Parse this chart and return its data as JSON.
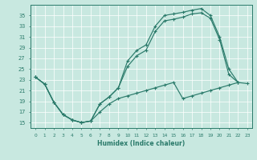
{
  "xlabel": "Humidex (Indice chaleur)",
  "bg_color": "#c8e8e0",
  "line_color": "#2a7a6a",
  "xlim": [
    -0.5,
    23.5
  ],
  "ylim": [
    14.0,
    37.0
  ],
  "xticks": [
    0,
    1,
    2,
    3,
    4,
    5,
    6,
    7,
    8,
    9,
    10,
    11,
    12,
    13,
    14,
    15,
    16,
    17,
    18,
    19,
    20,
    21,
    22,
    23
  ],
  "yticks": [
    15,
    17,
    19,
    21,
    23,
    25,
    27,
    29,
    31,
    33,
    35
  ],
  "upper_x": [
    0,
    1,
    2,
    3,
    4,
    5,
    6,
    7,
    8,
    9,
    10,
    11,
    12,
    13,
    14,
    15,
    16,
    17,
    18,
    19,
    20,
    21,
    22
  ],
  "upper_y": [
    23.5,
    22.2,
    18.8,
    16.5,
    15.5,
    15.0,
    15.3,
    18.5,
    19.8,
    21.5,
    26.5,
    28.5,
    29.5,
    33.0,
    35.0,
    35.3,
    35.6,
    36.0,
    36.3,
    35.0,
    31.0,
    25.0,
    22.5
  ],
  "mid_x": [
    0,
    1,
    2,
    3,
    4,
    5,
    6,
    7,
    8,
    9,
    10,
    11,
    12,
    13,
    14,
    15,
    16,
    17,
    18,
    19,
    20,
    21,
    22
  ],
  "mid_y": [
    23.5,
    22.2,
    18.8,
    16.5,
    15.5,
    15.0,
    15.3,
    18.5,
    19.8,
    21.5,
    25.5,
    27.5,
    28.5,
    32.0,
    34.0,
    34.3,
    34.7,
    35.3,
    35.5,
    34.5,
    30.5,
    24.0,
    22.5
  ],
  "low_x": [
    0,
    1,
    2,
    3,
    4,
    5,
    6,
    7,
    8,
    9,
    10,
    11,
    12,
    13,
    14,
    15,
    16,
    17,
    18,
    19,
    20,
    21,
    22,
    23
  ],
  "low_y": [
    23.5,
    22.2,
    18.8,
    16.5,
    15.5,
    15.0,
    15.3,
    17.0,
    18.5,
    19.5,
    20.0,
    20.5,
    21.0,
    21.5,
    22.0,
    22.5,
    19.5,
    20.0,
    20.5,
    21.0,
    21.5,
    22.0,
    22.5,
    22.3
  ]
}
